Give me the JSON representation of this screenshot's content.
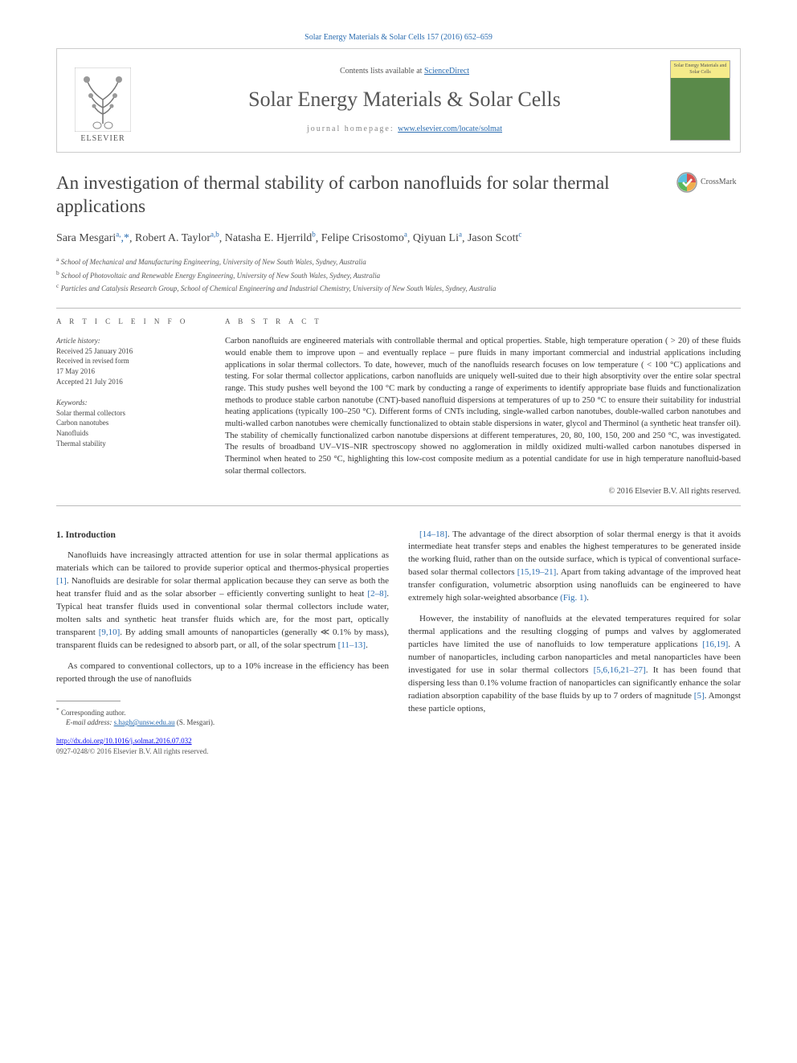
{
  "colors": {
    "link": "#2a6cb0",
    "text": "#333333",
    "muted": "#555555",
    "border": "#cccccc",
    "cover_top": "#f5eb8a",
    "cover_bottom": "#5a8a4a"
  },
  "fonts": {
    "body_family": "Georgia, 'Times New Roman', serif",
    "title_size_pt": 23,
    "journal_size_pt": 26,
    "body_size_pt": 11,
    "abstract_size_pt": 10.5,
    "info_size_pt": 9
  },
  "header": {
    "top_link": "Solar Energy Materials & Solar Cells 157 (2016) 652–659",
    "contents_prefix": "Contents lists available at ",
    "contents_link": "ScienceDirect",
    "journal_name": "Solar Energy Materials & Solar Cells",
    "homepage_prefix": "journal homepage: ",
    "homepage_url": "www.elsevier.com/locate/solmat",
    "elsevier_label": "ELSEVIER",
    "cover_label": "Solar Energy Materials and Solar Cells"
  },
  "crossmark": {
    "label": "CrossMark"
  },
  "title": "An investigation of thermal stability of carbon nanofluids for solar thermal applications",
  "authors_html_parts": [
    {
      "name": "Sara Mesgari",
      "aff": "a,",
      "star": true
    },
    {
      "name": "Robert A. Taylor",
      "aff": "a,b"
    },
    {
      "name": "Natasha E. Hjerrild",
      "aff": "b"
    },
    {
      "name": "Felipe Crisostomo",
      "aff": "a"
    },
    {
      "name": "Qiyuan Li",
      "aff": "a"
    },
    {
      "name": "Jason Scott",
      "aff": "c"
    }
  ],
  "affiliations": [
    {
      "sup": "a",
      "text": "School of Mechanical and Manufacturing Engineering, University of New South Wales, Sydney, Australia"
    },
    {
      "sup": "b",
      "text": "School of Photovoltaic and Renewable Energy Engineering, University of New South Wales, Sydney, Australia"
    },
    {
      "sup": "c",
      "text": "Particles and Catalysis Research Group, School of Chemical Engineering and Industrial Chemistry, University of New South Wales, Sydney, Australia"
    }
  ],
  "article_info": {
    "heading": "A R T I C L E  I N F O",
    "history_label": "Article history:",
    "history": [
      "Received 25 January 2016",
      "Received in revised form",
      "17 May 2016",
      "Accepted 21 July 2016"
    ],
    "keywords_label": "Keywords:",
    "keywords": [
      "Solar thermal collectors",
      "Carbon nanotubes",
      "Nanofluids",
      "Thermal stability"
    ]
  },
  "abstract": {
    "heading": "A B S T R A C T",
    "text": "Carbon nanofluids are engineered materials with controllable thermal and optical properties. Stable, high temperature operation ( > 20) of these fluids would enable them to improve upon – and eventually replace – pure fluids in many important commercial and industrial applications including applications in solar thermal collectors. To date, however, much of the nanofluids research focuses on low temperature ( < 100 °C) applications and testing. For solar thermal collector applications, carbon nanofluids are uniquely well-suited due to their high absorptivity over the entire solar spectral range. This study pushes well beyond the 100 °C mark by conducting a range of experiments to identify appropriate base fluids and functionalization methods to produce stable carbon nanotube (CNT)-based nanofluid dispersions at temperatures of up to 250 °C to ensure their suitability for industrial heating applications (typically 100–250 °C). Different forms of CNTs including, single-walled carbon nanotubes, double-walled carbon nanotubes and multi-walled carbon nanotubes were chemically functionalized to obtain stable dispersions in water, glycol and Therminol (a synthetic heat transfer oil). The stability of chemically functionalized carbon nanotube dispersions at different temperatures, 20, 80, 100, 150, 200 and 250 °C, was investigated. The results of broadband UV–VIS–NIR spectroscopy showed no agglomeration in mildly oxidized multi-walled carbon nanotubes dispersed in Therminol when heated to 250 °C, highlighting this low-cost composite medium as a potential candidate for use in high temperature nanofluid-based solar thermal collectors.",
    "copyright": "© 2016 Elsevier B.V. All rights reserved."
  },
  "body": {
    "section_number": "1.",
    "section_title": "Introduction",
    "left_paragraphs": [
      "Nanofluids have increasingly attracted attention for use in solar thermal applications as materials which can be tailored to provide superior optical and thermos-physical properties [1]. Nanofluids are desirable for solar thermal application because they can serve as both the heat transfer fluid and as the solar absorber – efficiently converting sunlight to heat [2–8]. Typical heat transfer fluids used in conventional solar thermal collectors include water, molten salts and synthetic heat transfer fluids which are, for the most part, optically transparent [9,10]. By adding small amounts of nanoparticles (generally ≪ 0.1% by mass), transparent fluids can be redesigned to absorb part, or all, of the solar spectrum [11–13].",
      "As compared to conventional collectors, up to a 10% increase in the efficiency has been reported through the use of nanofluids"
    ],
    "right_paragraphs": [
      "[14–18]. The advantage of the direct absorption of solar thermal energy is that it avoids intermediate heat transfer steps and enables the highest temperatures to be generated inside the working fluid, rather than on the outside surface, which is typical of conventional surface-based solar thermal collectors [15,19–21]. Apart from taking advantage of the improved heat transfer configuration, volumetric absorption using nanofluids can be engineered to have extremely high solar-weighted absorbance (Fig. 1).",
      "However, the instability of nanofluids at the elevated temperatures required for solar thermal applications and the resulting clogging of pumps and valves by agglomerated particles have limited the use of nanofluids to low temperature applications [16,19]. A number of nanoparticles, including carbon nanoparticles and metal nanoparticles have been investigated for use in solar thermal collectors [5,6,16,21–27]. It has been found that dispersing less than 0.1% volume fraction of nanoparticles can significantly enhance the solar radiation absorption capability of the base fluids by up to 7 orders of magnitude [5]. Amongst these particle options,"
    ],
    "ref_patterns": [
      "[1]",
      "[2–8]",
      "[9,10]",
      "[11–13]",
      "[14–18]",
      "[15,19–21]",
      "(Fig. 1)",
      "[16,19]",
      "[5,6,16,21–27]",
      "[5]"
    ]
  },
  "footnote": {
    "corresponding": "Corresponding author.",
    "email_label": "E-mail address: ",
    "email": "s.hagh@unsw.edu.au",
    "email_suffix": " (S. Mesgari).",
    "doi": "http://dx.doi.org/10.1016/j.solmat.2016.07.032",
    "rights": "0927-0248/© 2016 Elsevier B.V. All rights reserved."
  }
}
